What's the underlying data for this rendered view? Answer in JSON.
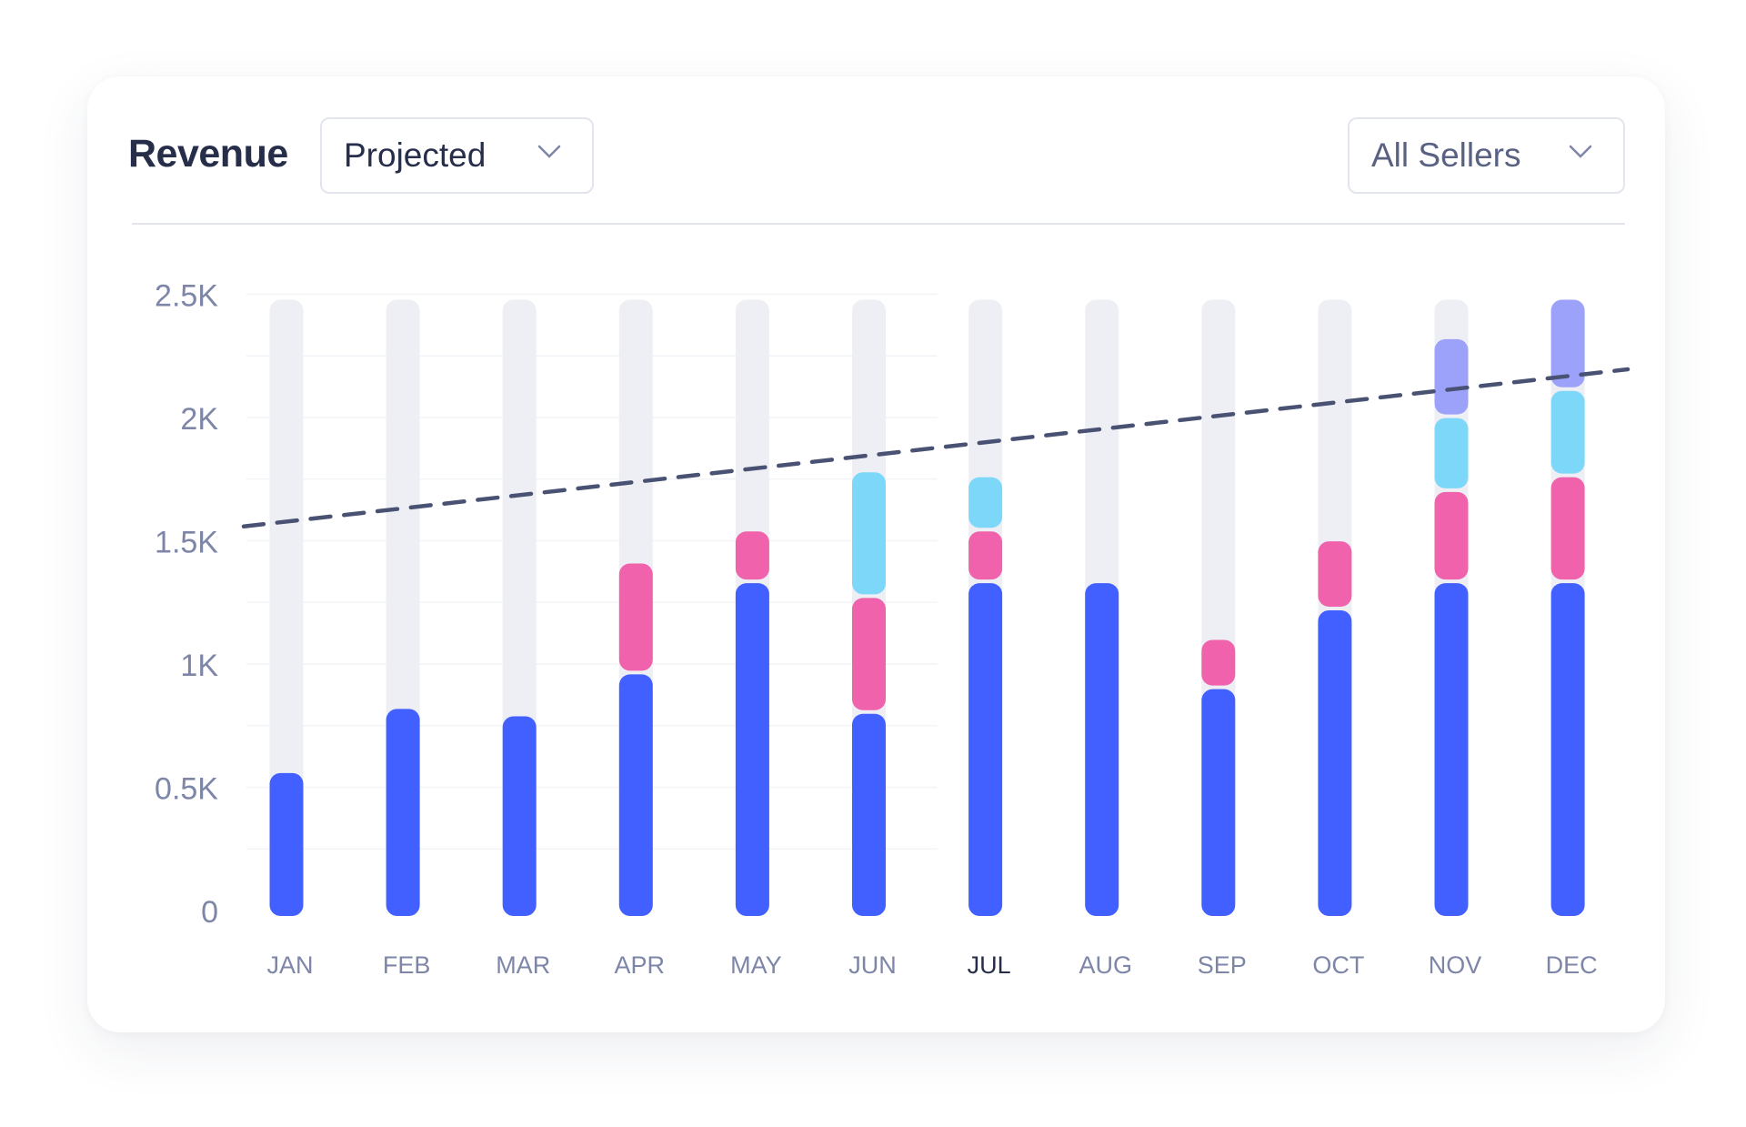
{
  "header": {
    "title": "Revenue",
    "mode_dropdown": "Projected",
    "seller_dropdown": "All Sellers"
  },
  "chart_data": {
    "type": "bar",
    "stacked": true,
    "categories": [
      "JAN",
      "FEB",
      "MAR",
      "APR",
      "MAY",
      "JUN",
      "JUL",
      "AUG",
      "SEP",
      "OCT",
      "NOV",
      "DEC"
    ],
    "highlighted_category": "JUL",
    "ylim": [
      0,
      2.5
    ],
    "yticks": [
      {
        "value": 0,
        "label": "0"
      },
      {
        "value": 0.5,
        "label": "0.5K"
      },
      {
        "value": 1,
        "label": "1K"
      },
      {
        "value": 1.5,
        "label": "1.5K"
      },
      {
        "value": 2,
        "label": "2K"
      },
      {
        "value": 2.5,
        "label": "2.5K"
      }
    ],
    "grid": true,
    "background_track_max": 2.5,
    "series": [
      {
        "color": "#425FFF",
        "values": [
          0.58,
          0.84,
          0.81,
          0.98,
          1.35,
          0.82,
          1.35,
          1.35,
          0.92,
          1.24,
          1.35,
          1.35
        ]
      },
      {
        "color": "#F062AB",
        "values": [
          0,
          0,
          0,
          0.45,
          0.21,
          0.47,
          0.21,
          0,
          0.2,
          0.28,
          0.37,
          0.43
        ]
      },
      {
        "color": "#7DD7F9",
        "values": [
          0,
          0,
          0,
          0,
          0,
          0.51,
          0.22,
          0,
          0,
          0,
          0.3,
          0.35
        ]
      },
      {
        "color": "#9CA2FA",
        "values": [
          0,
          0,
          0,
          0,
          0,
          0,
          0,
          0,
          0,
          0,
          0.32,
          0.37
        ]
      }
    ],
    "trend_line": {
      "style": "dashed",
      "color": "#4A5273",
      "start": {
        "category": "JAN",
        "value": 1.6
      },
      "end": {
        "category": "DEC",
        "value": 2.19
      }
    },
    "colors": {
      "track": "#EEEFF4",
      "axis_text": "#7E86A8",
      "title": "#262E4A"
    }
  }
}
